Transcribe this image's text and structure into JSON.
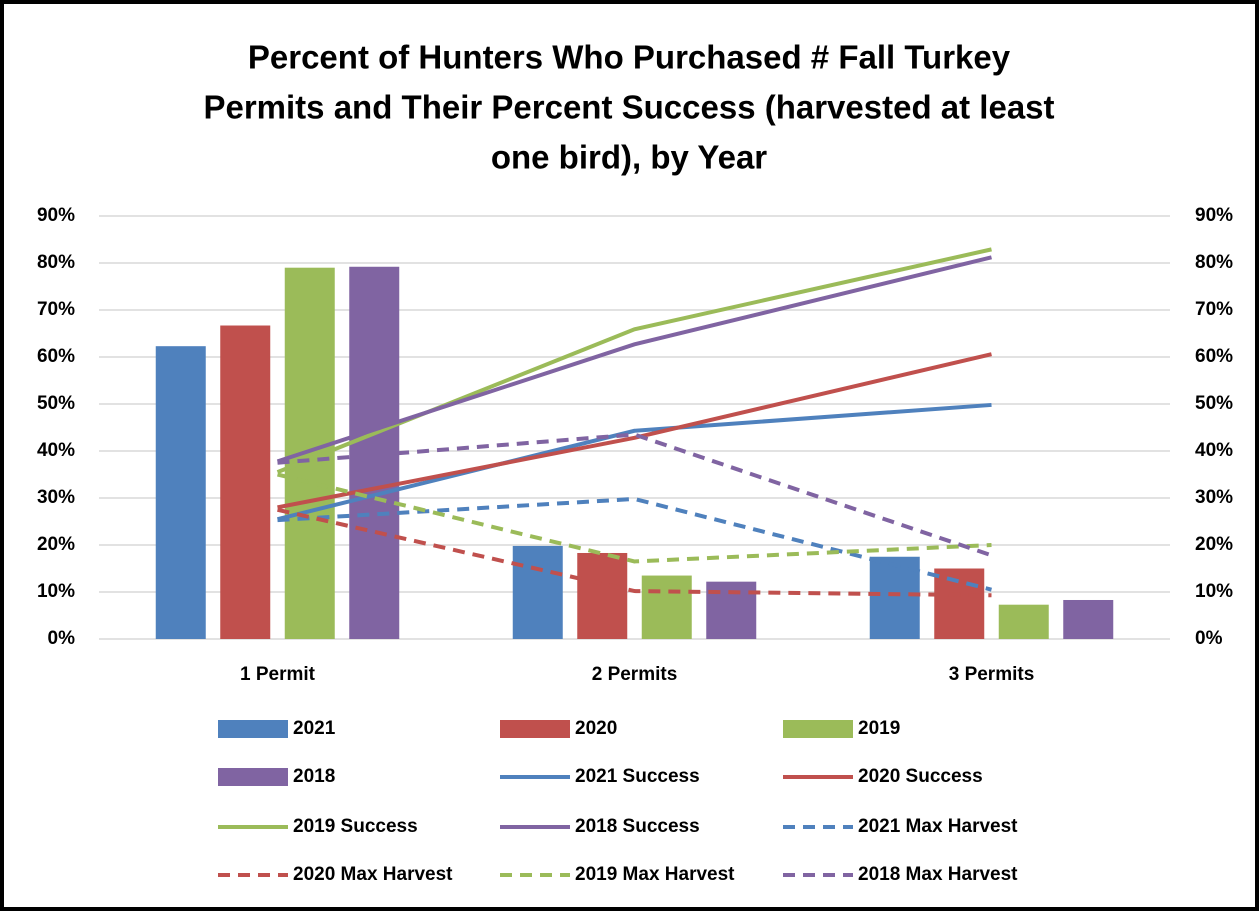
{
  "chart_data": {
    "type": "bar",
    "title": [
      "Percent of Hunters Who Purchased # Fall Turkey",
      "Permits and Their Percent Success (harvested at least",
      "one bird), by Year"
    ],
    "categories": [
      "1 Permit",
      "2 Permits",
      "3 Permits"
    ],
    "ylim": [
      0,
      90
    ],
    "yticks": [
      {
        "value": 0,
        "label": "0%"
      },
      {
        "value": 10,
        "label": "10%"
      },
      {
        "value": 20,
        "label": "20%"
      },
      {
        "value": 30,
        "label": "30%"
      },
      {
        "value": 40,
        "label": "40%"
      },
      {
        "value": 50,
        "label": "50%"
      },
      {
        "value": 60,
        "label": "60%"
      },
      {
        "value": 70,
        "label": "70%"
      },
      {
        "value": 80,
        "label": "80%"
      },
      {
        "value": 90,
        "label": "90%"
      }
    ],
    "y2lim": [
      0,
      90
    ],
    "y2ticks": [
      {
        "value": 0,
        "label": "0%"
      },
      {
        "value": 10,
        "label": "10%"
      },
      {
        "value": 20,
        "label": "20%"
      },
      {
        "value": 30,
        "label": "30%"
      },
      {
        "value": 40,
        "label": "40%"
      },
      {
        "value": 50,
        "label": "50%"
      },
      {
        "value": 60,
        "label": "60%"
      },
      {
        "value": 70,
        "label": "70%"
      },
      {
        "value": 80,
        "label": "80%"
      },
      {
        "value": 90,
        "label": "90%"
      }
    ],
    "grid": true,
    "legend": "bottom",
    "series": [
      {
        "name": "2021",
        "type": "bar",
        "color": "#4f81bd",
        "values": [
          62.3,
          19.8,
          17.5
        ]
      },
      {
        "name": "2020",
        "type": "bar",
        "color": "#c0504d",
        "values": [
          66.7,
          18.3,
          15.0
        ]
      },
      {
        "name": "2019",
        "type": "bar",
        "color": "#9bbb59",
        "values": [
          79.0,
          13.5,
          7.3
        ]
      },
      {
        "name": "2018",
        "type": "bar",
        "color": "#8064a2",
        "values": [
          79.2,
          12.2,
          8.3
        ]
      },
      {
        "name": "2021 Success",
        "type": "line",
        "axis": "y2",
        "color": "#4f81bd",
        "dashed": false,
        "values": [
          25.5,
          44.3,
          49.8
        ]
      },
      {
        "name": "2020 Success",
        "type": "line",
        "axis": "y2",
        "color": "#c0504d",
        "dashed": false,
        "values": [
          28.0,
          42.8,
          60.6
        ]
      },
      {
        "name": "2019 Success",
        "type": "line",
        "axis": "y2",
        "color": "#9bbb59",
        "dashed": false,
        "values": [
          35.5,
          65.9,
          82.9
        ]
      },
      {
        "name": "2018 Success",
        "type": "line",
        "axis": "y2",
        "color": "#8064a2",
        "dashed": false,
        "values": [
          37.8,
          62.7,
          81.2
        ]
      },
      {
        "name": "2021 Max Harvest",
        "type": "line",
        "axis": "y2",
        "color": "#4f81bd",
        "dashed": true,
        "values": [
          25.3,
          29.8,
          10.5
        ]
      },
      {
        "name": "2020 Max Harvest",
        "type": "line",
        "axis": "y2",
        "color": "#c0504d",
        "dashed": true,
        "values": [
          27.5,
          10.2,
          9.3
        ]
      },
      {
        "name": "2019 Max Harvest",
        "type": "line",
        "axis": "y2",
        "color": "#9bbb59",
        "dashed": true,
        "values": [
          35.0,
          16.5,
          20.0
        ]
      },
      {
        "name": "2018 Max Harvest",
        "type": "line",
        "axis": "y2",
        "color": "#8064a2",
        "dashed": true,
        "values": [
          37.5,
          43.5,
          17.8
        ]
      }
    ]
  }
}
